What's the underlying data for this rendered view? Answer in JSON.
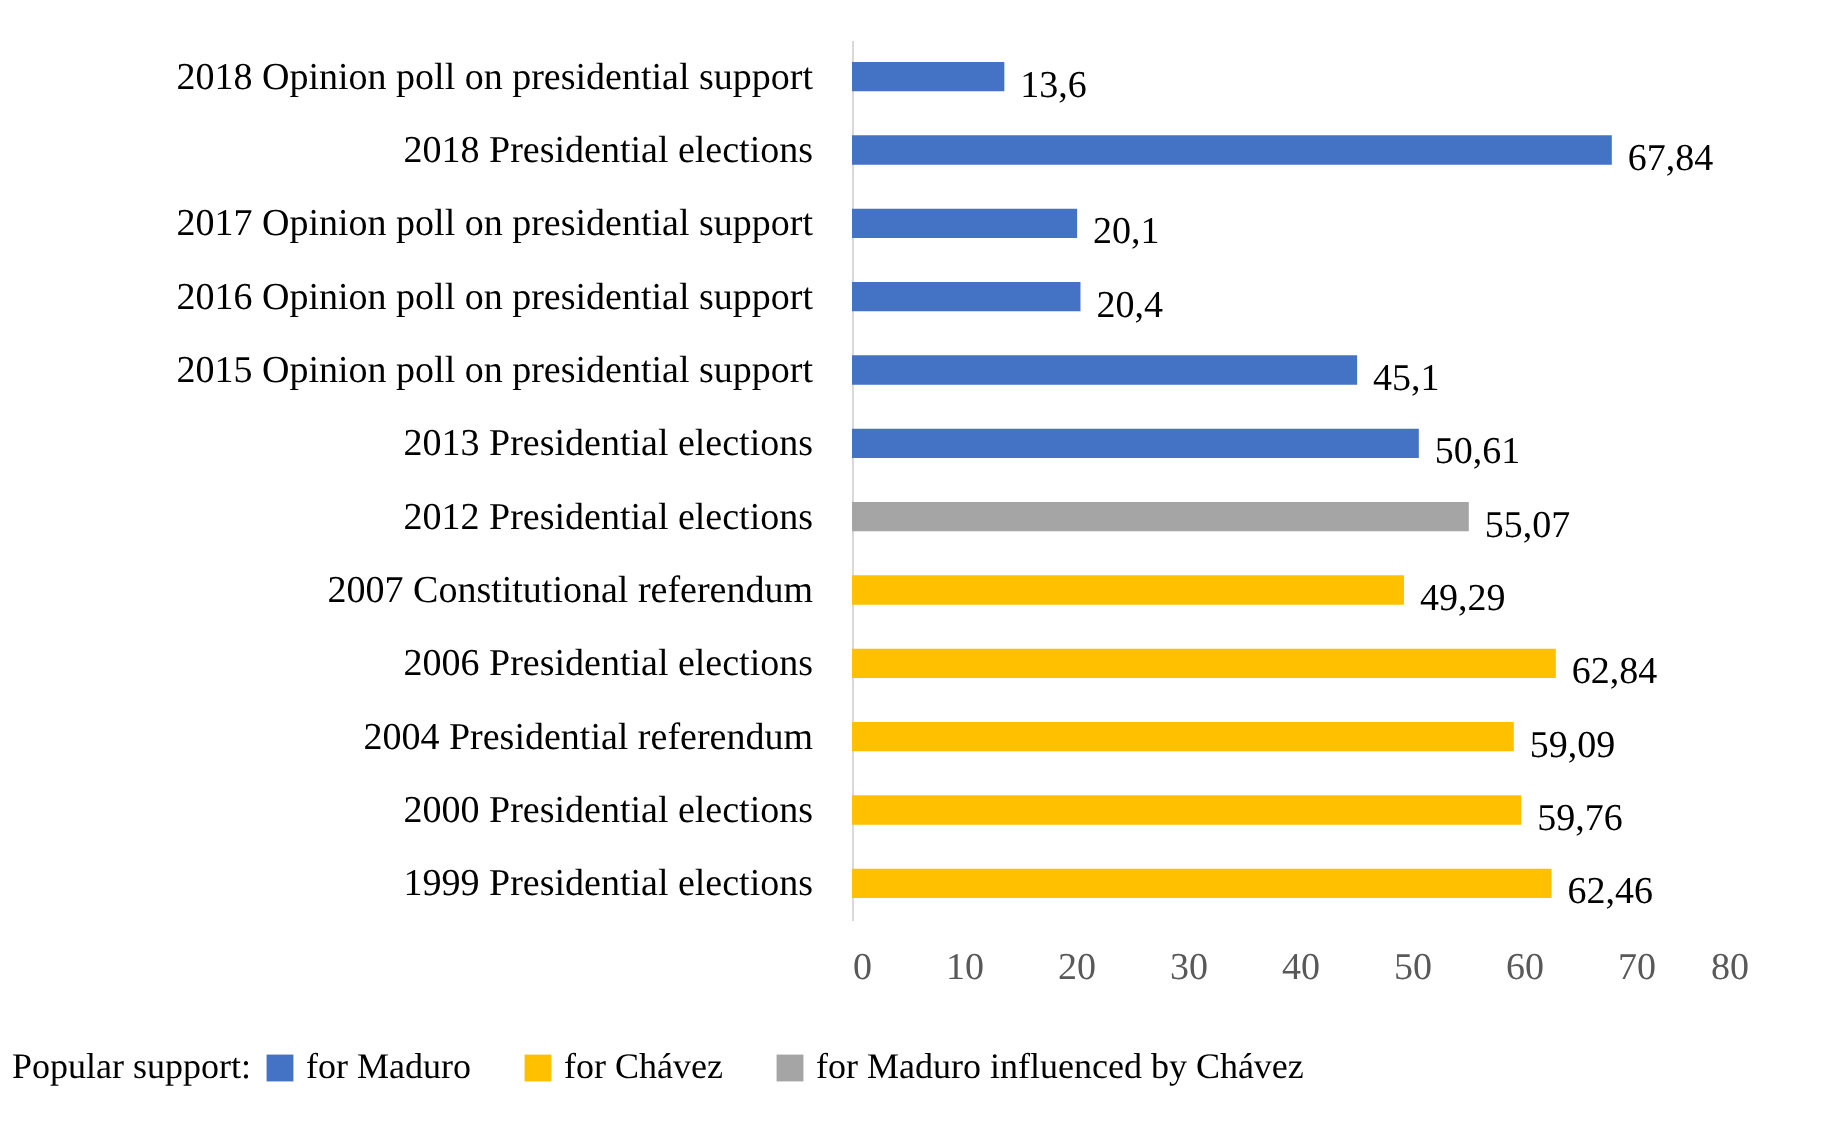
{
  "chart_data": {
    "type": "bar",
    "orientation": "horizontal",
    "legend": "bottom",
    "legend_title": "Popular support:",
    "grid": false,
    "categories": [
      "2018 Opinion poll on presidential support",
      "2018 Presidential elections",
      "2017 Opinion poll on presidential support",
      "2016 Opinion poll on presidential support",
      "2015 Opinion poll on presidential support",
      "2013 Presidential elections",
      "2012 Presidential elections",
      "2007 Constitutional referendum",
      "2006 Presidential elections",
      "2004 Presidential referendum",
      "2000 Presidential elections",
      "1999 Presidential elections"
    ],
    "xlim": [
      0,
      80
    ],
    "xticks": [
      0,
      10,
      20,
      30,
      40,
      50,
      60,
      70,
      80
    ],
    "series": [
      {
        "name": "for Maduro",
        "color": "#4472c4",
        "values": [
          13.6,
          67.84,
          20.1,
          20.4,
          45.1,
          50.61,
          null,
          null,
          null,
          null,
          null,
          null
        ],
        "value_labels": [
          "13,6",
          "67,84",
          "20,1",
          "20,4",
          "45,1",
          "50,61",
          null,
          null,
          null,
          null,
          null,
          null
        ]
      },
      {
        "name": "for Chávez",
        "color": "#ffc000",
        "values": [
          null,
          null,
          null,
          null,
          null,
          null,
          null,
          49.29,
          62.84,
          59.09,
          59.76,
          62.46
        ],
        "value_labels": [
          null,
          null,
          null,
          null,
          null,
          null,
          null,
          "49,29",
          "62,84",
          "59,09",
          "59,76",
          "62,46"
        ]
      },
      {
        "name": "for Maduro influenced by Chávez",
        "color": "#a5a5a5",
        "values": [
          null,
          null,
          null,
          null,
          null,
          null,
          55.07,
          null,
          null,
          null,
          null,
          null
        ],
        "value_labels": [
          null,
          null,
          null,
          null,
          null,
          null,
          "55,07",
          null,
          null,
          null,
          null,
          null
        ]
      }
    ]
  }
}
